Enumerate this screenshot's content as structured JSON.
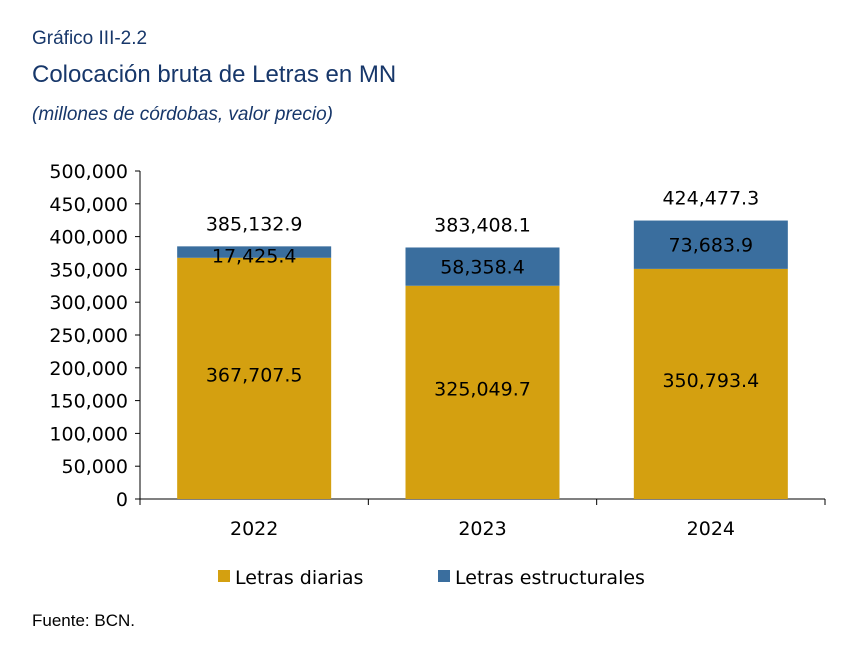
{
  "header": {
    "label": "Gráfico III-2.2",
    "title": "Colocación bruta de Letras en MN",
    "subtitle": "(millones de córdobas, valor precio)"
  },
  "footer": {
    "source": "Fuente: BCN."
  },
  "chart_data": {
    "type": "bar",
    "stacked": true,
    "categories": [
      "2022",
      "2023",
      "2024"
    ],
    "series": [
      {
        "name": "Letras diarias",
        "color": "#d4a010",
        "values": [
          367707.5,
          325049.7,
          350793.4
        ],
        "labels": [
          "367,707.5",
          "325,049.7",
          "350,793.4"
        ]
      },
      {
        "name": "Letras estructurales",
        "color": "#3a6e9e",
        "values": [
          17425.4,
          58358.4,
          73683.9
        ],
        "labels": [
          "17,425.4",
          "58,358.4",
          "73,683.9"
        ]
      }
    ],
    "totals": [
      385132.9,
      383408.1,
      424477.3
    ],
    "total_labels": [
      "385,132.9",
      "383,408.1",
      "424,477.3"
    ],
    "ylim": [
      0,
      500000
    ],
    "yticks": [
      0,
      50000,
      100000,
      150000,
      200000,
      250000,
      300000,
      350000,
      400000,
      450000,
      500000
    ],
    "ytick_labels": [
      "0",
      "50,000",
      "100,000",
      "150,000",
      "200,000",
      "250,000",
      "300,000",
      "350,000",
      "400,000",
      "450,000",
      "500,000"
    ],
    "grid": false,
    "legend": "bottom"
  }
}
